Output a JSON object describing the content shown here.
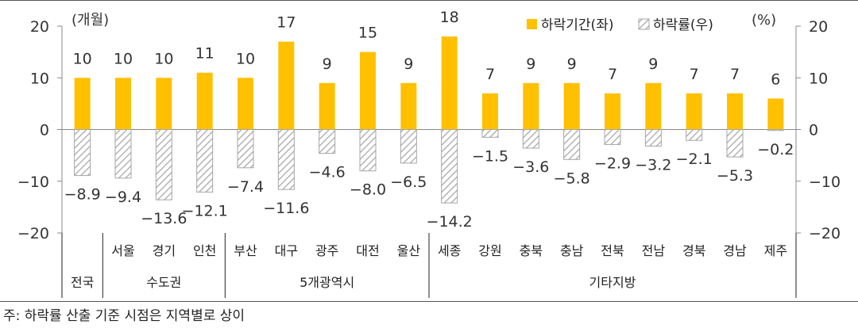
{
  "chart_data": {
    "type": "bar",
    "categories": [
      "전국",
      "서울",
      "경기",
      "인천",
      "부산",
      "대구",
      "광주",
      "대전",
      "울산",
      "세종",
      "강원",
      "충북",
      "충남",
      "전북",
      "전남",
      "경북",
      "경남",
      "제주"
    ],
    "groups": [
      {
        "label": "전국",
        "count": 1
      },
      {
        "label": "수도권",
        "count": 3
      },
      {
        "label": "5개광역시",
        "count": 5
      },
      {
        "label": "기타지방",
        "count": 9
      }
    ],
    "series": [
      {
        "name": "하락기간(좌)",
        "axis": "left",
        "color": "#FFC000",
        "values": [
          10,
          10,
          10,
          11,
          10,
          17,
          9,
          15,
          9,
          18,
          7,
          9,
          9,
          7,
          9,
          7,
          7,
          6
        ]
      },
      {
        "name": "하락률(우)",
        "axis": "right",
        "color": "#A6A6A6",
        "values": [
          -8.9,
          -9.4,
          -13.6,
          -12.1,
          -7.4,
          -11.6,
          -4.6,
          -8.0,
          -6.5,
          -14.2,
          -1.5,
          -3.6,
          -5.8,
          -2.9,
          -3.2,
          -2.1,
          -5.3,
          -0.2
        ]
      }
    ],
    "data_labels": {
      "duration": [
        "10",
        "10",
        "10",
        "11",
        "10",
        "17",
        "9",
        "15",
        "9",
        "18",
        "7",
        "9",
        "9",
        "7",
        "9",
        "7",
        "7",
        "6"
      ],
      "rate": [
        "-8.9",
        "-9.4",
        "-13.6",
        "-12.1",
        "-7.4",
        "-11.6",
        "-4.6",
        "-8.0",
        "-6.5",
        "-14.2",
        "-1.5",
        "-3.6",
        "-5.8",
        "-2.9",
        "-3.2",
        "-2.1",
        "-5.3",
        "-0.2"
      ]
    },
    "ylim": [
      -20,
      20
    ],
    "yticks": [
      20,
      10,
      0,
      -10,
      -20
    ],
    "ytick_labels": [
      "20",
      "10",
      "0",
      "-10",
      "-20"
    ],
    "left_unit": "(개월)",
    "right_unit": "(%)",
    "legend_position": "top-right",
    "grid": false
  },
  "note": "주: 하락률 산출 기준 시점은 지역별로 상이"
}
